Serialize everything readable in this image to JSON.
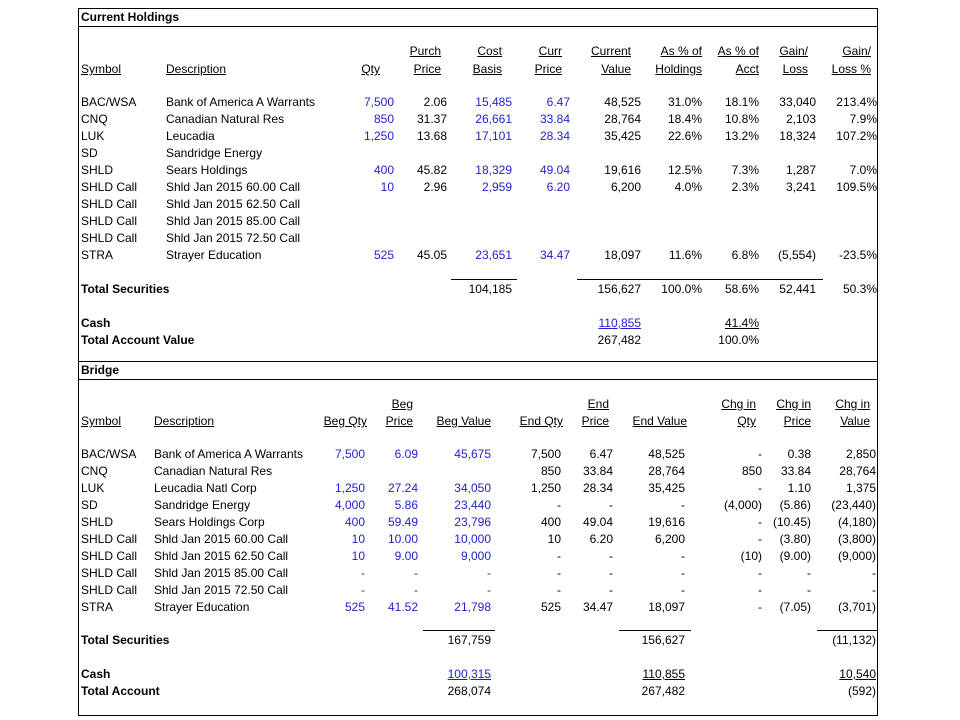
{
  "holdings": {
    "title": "Current Holdings",
    "headers": {
      "symbol": [
        "",
        "Symbol"
      ],
      "description": [
        "",
        "Description"
      ],
      "qty": [
        "",
        "Qty"
      ],
      "purch_price": [
        "Purch",
        "Price"
      ],
      "cost_basis": [
        "Cost",
        "Basis"
      ],
      "curr_price": [
        "Curr",
        "Price"
      ],
      "current_value": [
        "Current",
        "Value"
      ],
      "pct_holdings": [
        "As % of",
        "Holdings"
      ],
      "pct_acct": [
        "As % of",
        "Acct"
      ],
      "gain": [
        "Gain/",
        "Loss"
      ],
      "gain_pct": [
        "Gain/",
        "Loss %"
      ]
    },
    "rows": [
      [
        "BAC/WSA",
        "Bank of America A Warrants",
        "7,500",
        "2.06",
        "15,485",
        "6.47",
        "48,525",
        "31.0%",
        "18.1%",
        "33,040",
        "213.4%"
      ],
      [
        "CNQ",
        "Canadian Natural Res",
        "850",
        "31.37",
        "26,661",
        "33.84",
        "28,764",
        "18.4%",
        "10.8%",
        "2,103",
        "7.9%"
      ],
      [
        "LUK",
        "Leucadia",
        "1,250",
        "13.68",
        "17,101",
        "28.34",
        "35,425",
        "22.6%",
        "13.2%",
        "18,324",
        "107.2%"
      ],
      [
        "SD",
        "Sandridge Energy",
        "",
        "",
        "",
        "",
        "",
        "",
        "",
        "",
        ""
      ],
      [
        "SHLD",
        "Sears Holdings",
        "400",
        "45.82",
        "18,329",
        "49.04",
        "19,616",
        "12.5%",
        "7.3%",
        "1,287",
        "7.0%"
      ],
      [
        "SHLD Call",
        "Shld Jan 2015 60.00 Call",
        "10",
        "2.96",
        "2,959",
        "6.20",
        "6,200",
        "4.0%",
        "2.3%",
        "3,241",
        "109.5%"
      ],
      [
        "SHLD Call",
        "Shld Jan 2015 62.50 Call",
        "",
        "",
        "",
        "",
        "",
        "",
        "",
        "",
        ""
      ],
      [
        "SHLD Call",
        "Shld Jan 2015 85.00 Call",
        "",
        "",
        "",
        "",
        "",
        "",
        "",
        "",
        ""
      ],
      [
        "SHLD Call",
        "Shld Jan 2015 72.50 Call",
        "",
        "",
        "",
        "",
        "",
        "",
        "",
        "",
        ""
      ],
      [
        "STRA",
        "Strayer Education",
        "525",
        "45.05",
        "23,651",
        "34.47",
        "18,097",
        "11.6%",
        "6.8%",
        "(5,554)",
        "-23.5%"
      ]
    ],
    "total_securities": {
      "label": "Total Securities",
      "cost_basis": "104,185",
      "current_value": "156,627",
      "pct_holdings": "100.0%",
      "pct_acct": "58.6%",
      "gain": "52,441",
      "gain_pct": "50.3%"
    },
    "cash": {
      "label": "Cash",
      "current_value": "110,855",
      "pct_acct": "41.4%"
    },
    "total_account": {
      "label": "Total Account Value",
      "current_value": "267,482",
      "pct_acct": "100.0%"
    }
  },
  "bridge": {
    "title": "Bridge",
    "headers": {
      "symbol": [
        "",
        "Symbol"
      ],
      "description": [
        "",
        "Description"
      ],
      "beg_qty": [
        "",
        "Beg Qty"
      ],
      "beg_price": [
        "Beg",
        "Price"
      ],
      "beg_value": [
        "",
        "Beg Value"
      ],
      "end_qty": [
        "",
        "End Qty"
      ],
      "end_price": [
        "End",
        "Price"
      ],
      "end_value": [
        "",
        "End Value"
      ],
      "chg_qty": [
        "Chg in",
        "Qty"
      ],
      "chg_price": [
        "Chg in",
        "Price"
      ],
      "chg_value": [
        "Chg in",
        "Value"
      ]
    },
    "rows": [
      [
        "BAC/WSA",
        "Bank of America A Warrants",
        "7,500",
        "6.09",
        "45,675",
        "7,500",
        "6.47",
        "48,525",
        "-",
        "0.38",
        "2,850"
      ],
      [
        "CNQ",
        "Canadian Natural Res",
        "",
        "",
        "",
        "850",
        "33.84",
        "28,764",
        "850",
        "33.84",
        "28,764"
      ],
      [
        "LUK",
        "Leucadia Natl Corp",
        "1,250",
        "27.24",
        "34,050",
        "1,250",
        "28.34",
        "35,425",
        "-",
        "1.10",
        "1,375"
      ],
      [
        "SD",
        "Sandridge Energy",
        "4,000",
        "5.86",
        "23,440",
        "-",
        "-",
        "-",
        "(4,000)",
        "(5.86)",
        "(23,440)"
      ],
      [
        "SHLD",
        "Sears Holdings Corp",
        "400",
        "59.49",
        "23,796",
        "400",
        "49.04",
        "19,616",
        "-",
        "(10.45)",
        "(4,180)"
      ],
      [
        "SHLD Call",
        "Shld Jan 2015 60.00 Call",
        "10",
        "10.00",
        "10,000",
        "10",
        "6.20",
        "6,200",
        "-",
        "(3.80)",
        "(3,800)"
      ],
      [
        "SHLD Call",
        "Shld Jan 2015 62.50 Call",
        "10",
        "9.00",
        "9,000",
        "-",
        "-",
        "-",
        "(10)",
        "(9.00)",
        "(9,000)"
      ],
      [
        "SHLD Call",
        "Shld Jan 2015 85.00 Call",
        "-",
        "-",
        "-",
        "-",
        "-",
        "-",
        "-",
        "-",
        "-"
      ],
      [
        "SHLD Call",
        "Shld Jan 2015 72.50 Call",
        "-",
        "-",
        "-",
        "-",
        "-",
        "-",
        "-",
        "-",
        "-"
      ],
      [
        "STRA",
        "Strayer Education",
        "525",
        "41.52",
        "21,798",
        "525",
        "34.47",
        "18,097",
        "-",
        "(7.05)",
        "(3,701)"
      ]
    ],
    "total_securities": {
      "label": "Total Securities",
      "beg_value": "167,759",
      "end_value": "156,627",
      "chg_value": "(11,132)"
    },
    "cash": {
      "label": "Cash",
      "beg_value": "100,315",
      "end_value": "110,855",
      "chg_value": "10,540"
    },
    "total_account": {
      "label": "Total Account",
      "beg_value": "268,074",
      "end_value": "267,482",
      "chg_value": "(592)"
    }
  },
  "colors": {
    "input_blue": "#1f1fcc",
    "text": "#000000",
    "border": "#000000"
  }
}
